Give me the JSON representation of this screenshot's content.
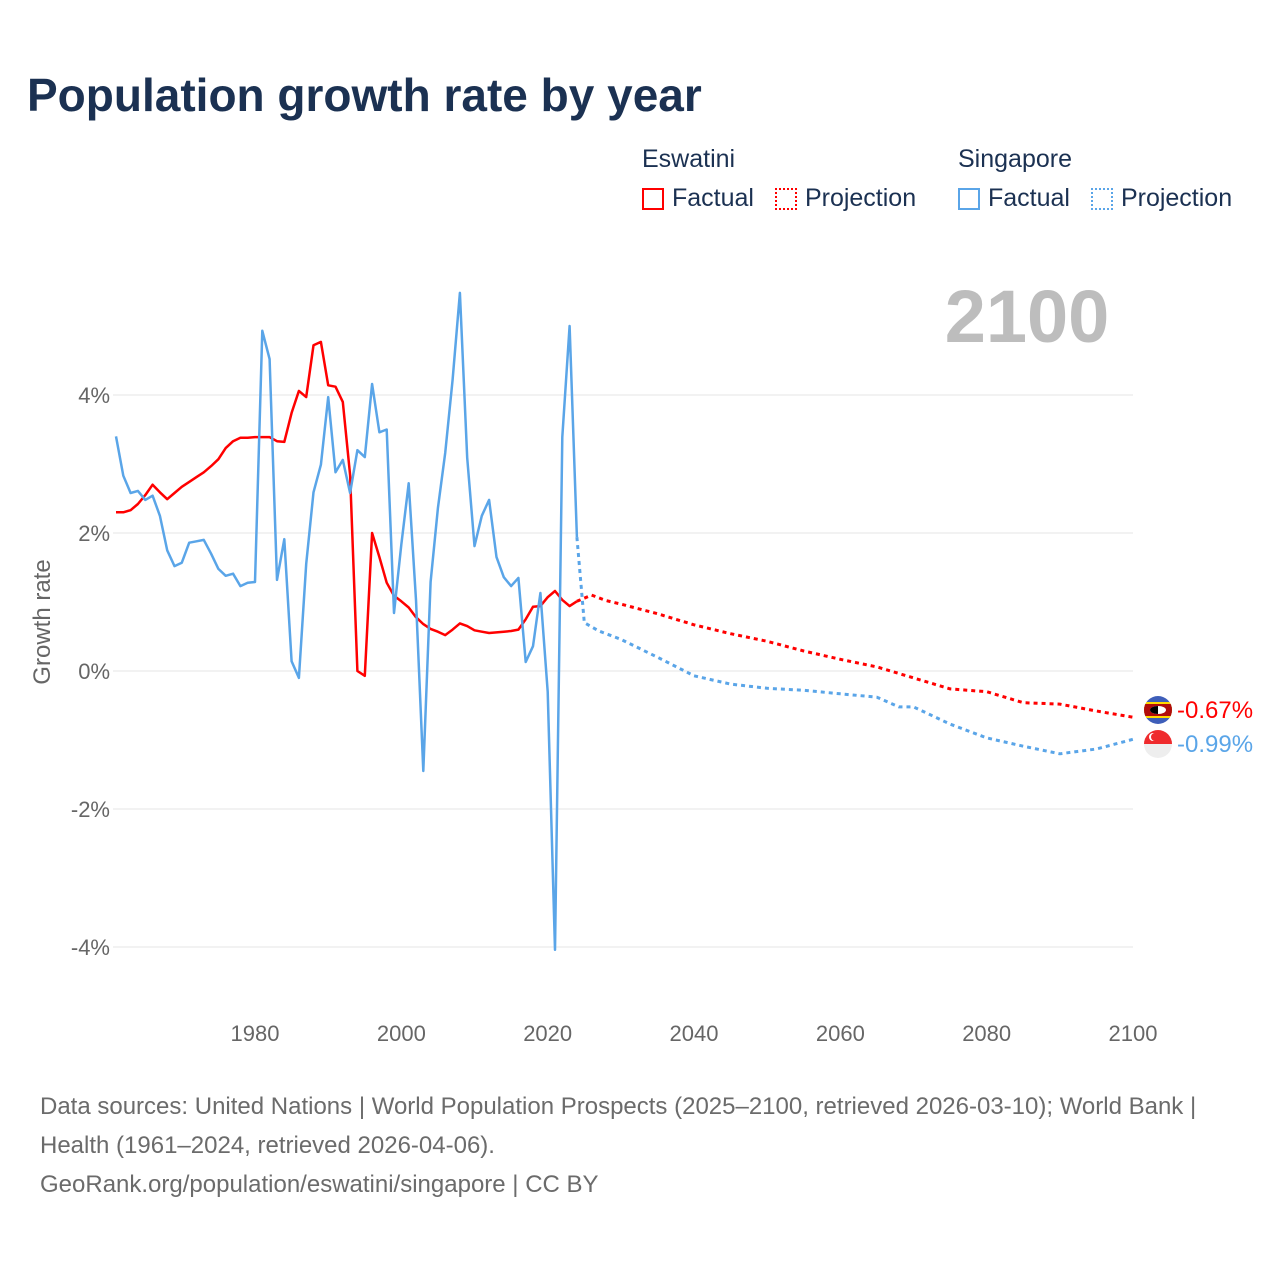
{
  "title": "Population growth rate by year",
  "legend": [
    {
      "group": "Eswatini",
      "factual_label": "Factual",
      "projection_label": "Projection",
      "color": "#ff0000"
    },
    {
      "group": "Singapore",
      "factual_label": "Factual",
      "projection_label": "Projection",
      "color": "#5aa5e8"
    }
  ],
  "year_watermark": "2100",
  "footer": {
    "sources": "Data sources: United Nations | World Population Prospects (2025–2100, retrieved 2026-03-10); World Bank | Health (1961–2024, retrieved 2026-04-06).",
    "link": "GeoRank.org/population/eswatini/singapore | CC BY"
  },
  "chart_data": {
    "type": "line",
    "title": "Population growth rate by year",
    "xlabel": "",
    "ylabel": "Growth rate",
    "xlim": [
      1961,
      2100
    ],
    "ylim": [
      -4.5,
      5.6
    ],
    "x_ticks": [
      1980,
      2000,
      2020,
      2040,
      2060,
      2080,
      2100
    ],
    "x_tick_labels": [
      "1980",
      "2000",
      "2020",
      "2040",
      "2060",
      "2080",
      "2100"
    ],
    "y_ticks": [
      4,
      2,
      0,
      -2,
      -4
    ],
    "y_tick_labels": [
      "4%",
      "2%",
      "0%",
      "-2%",
      "-4%"
    ],
    "grid": true,
    "legend_position": "top-right",
    "end_labels": {
      "Eswatini": "-0.67%",
      "Singapore": "-0.99%"
    },
    "series": [
      {
        "name": "Eswatini Factual",
        "country": "Eswatini",
        "style": "solid",
        "color": "#ff0000",
        "x": [
          1961,
          1962,
          1963,
          1964,
          1965,
          1966,
          1967,
          1968,
          1969,
          1970,
          1971,
          1972,
          1973,
          1974,
          1975,
          1976,
          1977,
          1978,
          1979,
          1980,
          1981,
          1982,
          1983,
          1984,
          1985,
          1986,
          1987,
          1988,
          1989,
          1990,
          1991,
          1992,
          1993,
          1994,
          1995,
          1996,
          1997,
          1998,
          1999,
          2000,
          2001,
          2002,
          2003,
          2004,
          2005,
          2006,
          2007,
          2008,
          2009,
          2010,
          2011,
          2012,
          2013,
          2014,
          2015,
          2016,
          2017,
          2018,
          2019,
          2020,
          2021,
          2022,
          2023,
          2024
        ],
        "y": [
          2.3,
          2.3,
          2.33,
          2.42,
          2.55,
          2.7,
          2.59,
          2.49,
          2.58,
          2.67,
          2.74,
          2.81,
          2.88,
          2.97,
          3.07,
          3.23,
          3.33,
          3.38,
          3.38,
          3.39,
          3.39,
          3.39,
          3.33,
          3.32,
          3.74,
          4.06,
          3.97,
          4.72,
          4.77,
          4.14,
          4.12,
          3.9,
          2.84,
          0.0,
          -0.07,
          2.0,
          1.65,
          1.28,
          1.09,
          1.01,
          0.92,
          0.78,
          0.68,
          0.61,
          0.57,
          0.52,
          0.6,
          0.69,
          0.65,
          0.59,
          0.57,
          0.55,
          0.56,
          0.57,
          0.58,
          0.6,
          0.75,
          0.93,
          0.94,
          1.07,
          1.16,
          1.03,
          0.94,
          1.01
        ]
      },
      {
        "name": "Eswatini Projection",
        "country": "Eswatini",
        "style": "dotted",
        "color": "#ff0000",
        "x": [
          2024,
          2026,
          2028,
          2030,
          2035,
          2040,
          2045,
          2050,
          2055,
          2060,
          2065,
          2070,
          2075,
          2080,
          2085,
          2090,
          2095,
          2100
        ],
        "y": [
          1.01,
          1.1,
          1.02,
          0.97,
          0.83,
          0.67,
          0.54,
          0.43,
          0.29,
          0.17,
          0.06,
          -0.1,
          -0.26,
          -0.3,
          -0.46,
          -0.48,
          -0.58,
          -0.67
        ]
      },
      {
        "name": "Singapore Factual",
        "country": "Singapore",
        "style": "solid",
        "color": "#5aa5e8",
        "x": [
          1961,
          1962,
          1963,
          1964,
          1965,
          1966,
          1967,
          1968,
          1969,
          1970,
          1971,
          1972,
          1973,
          1974,
          1975,
          1976,
          1977,
          1978,
          1979,
          1980,
          1981,
          1982,
          1983,
          1984,
          1985,
          1986,
          1987,
          1988,
          1989,
          1990,
          1991,
          1992,
          1993,
          1994,
          1995,
          1996,
          1997,
          1998,
          1999,
          2000,
          2001,
          2002,
          2003,
          2004,
          2005,
          2006,
          2007,
          2008,
          2009,
          2010,
          2011,
          2012,
          2013,
          2014,
          2015,
          2016,
          2017,
          2018,
          2019,
          2020,
          2021,
          2022,
          2023,
          2024
        ],
        "y": [
          3.4,
          2.83,
          2.58,
          2.61,
          2.48,
          2.54,
          2.25,
          1.75,
          1.52,
          1.57,
          1.86,
          1.88,
          1.9,
          1.7,
          1.48,
          1.38,
          1.41,
          1.23,
          1.28,
          1.29,
          4.93,
          4.52,
          1.32,
          1.91,
          0.14,
          -0.1,
          1.55,
          2.59,
          2.99,
          3.97,
          2.88,
          3.06,
          2.58,
          3.2,
          3.1,
          4.16,
          3.46,
          3.5,
          0.84,
          1.83,
          2.72,
          1.03,
          -1.45,
          1.29,
          2.36,
          3.16,
          4.22,
          5.48,
          3.09,
          1.81,
          2.25,
          2.48,
          1.65,
          1.36,
          1.23,
          1.35,
          0.13,
          0.36,
          1.13,
          -0.3,
          -4.04,
          3.39,
          5.0,
          1.94
        ]
      },
      {
        "name": "Singapore Projection",
        "country": "Singapore",
        "style": "dotted",
        "color": "#5aa5e8",
        "x": [
          2024,
          2025,
          2027,
          2030,
          2035,
          2040,
          2045,
          2050,
          2055,
          2060,
          2065,
          2068,
          2070,
          2075,
          2080,
          2085,
          2090,
          2095,
          2100
        ],
        "y": [
          1.94,
          0.7,
          0.58,
          0.46,
          0.2,
          -0.07,
          -0.19,
          -0.25,
          -0.28,
          -0.33,
          -0.38,
          -0.52,
          -0.52,
          -0.77,
          -0.97,
          -1.09,
          -1.2,
          -1.13,
          -0.99
        ]
      }
    ]
  }
}
